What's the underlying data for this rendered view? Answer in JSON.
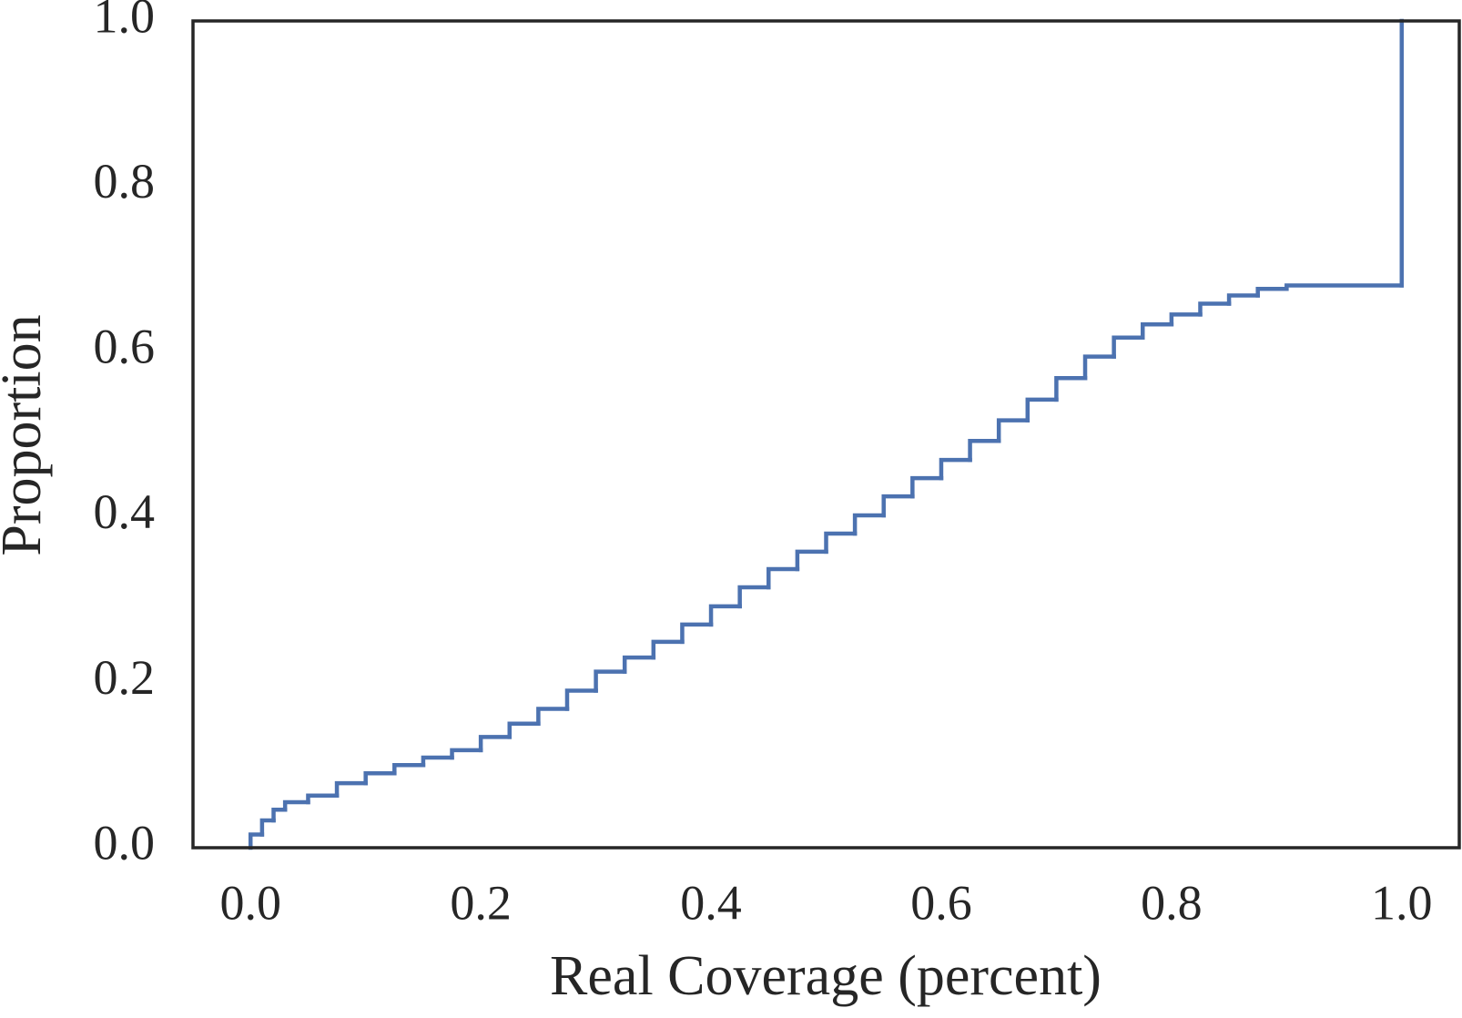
{
  "chart_data": {
    "type": "ecdf",
    "xlabel": "Real Coverage (percent)",
    "ylabel": "Proportion",
    "x": [
      0,
      0.01,
      0.02,
      0.03,
      0.05,
      0.075,
      0.1,
      0.125,
      0.15,
      0.175,
      0.2,
      0.225,
      0.25,
      0.275,
      0.3,
      0.325,
      0.35,
      0.375,
      0.4,
      0.425,
      0.45,
      0.475,
      0.5,
      0.525,
      0.55,
      0.575,
      0.6,
      0.625,
      0.65,
      0.675,
      0.7,
      0.725,
      0.75,
      0.775,
      0.8,
      0.825,
      0.85,
      0.875,
      0.9,
      1.0
    ],
    "series": [
      {
        "color": "#4c72b0",
        "values": [
          0.016,
          0.033,
          0.046,
          0.055,
          0.063,
          0.078,
          0.09,
          0.1,
          0.109,
          0.118,
          0.134,
          0.15,
          0.168,
          0.19,
          0.213,
          0.23,
          0.249,
          0.27,
          0.292,
          0.315,
          0.337,
          0.358,
          0.38,
          0.402,
          0.425,
          0.447,
          0.469,
          0.492,
          0.517,
          0.542,
          0.568,
          0.594,
          0.617,
          0.633,
          0.645,
          0.658,
          0.668,
          0.676,
          0.68,
          1.0
        ]
      }
    ],
    "xlim": [
      -0.05,
      1.05
    ],
    "ylim": [
      0,
      1
    ],
    "xticks": [
      {
        "value": 0,
        "label": "0.0"
      },
      0.2,
      0.4,
      0.6,
      0.8,
      {
        "value": 1,
        "label": "1.0"
      }
    ],
    "yticks": [
      {
        "value": 0,
        "label": "0.0"
      },
      0.2,
      0.4,
      0.6,
      0.8,
      {
        "value": 1,
        "label": "1.0"
      }
    ],
    "grid": false
  }
}
